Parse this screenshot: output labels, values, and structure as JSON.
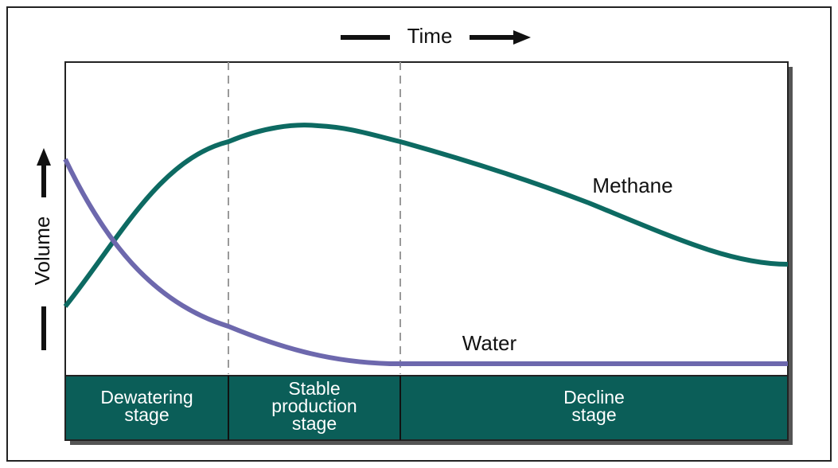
{
  "axes": {
    "x_label": "Time",
    "y_label": "Volume"
  },
  "curves": {
    "methane": "Methane",
    "water": "Water"
  },
  "stages": [
    {
      "lines": [
        "Dewatering",
        "stage"
      ]
    },
    {
      "lines": [
        "Stable",
        "production",
        "stage"
      ]
    },
    {
      "lines": [
        "Decline",
        "stage"
      ]
    }
  ]
}
